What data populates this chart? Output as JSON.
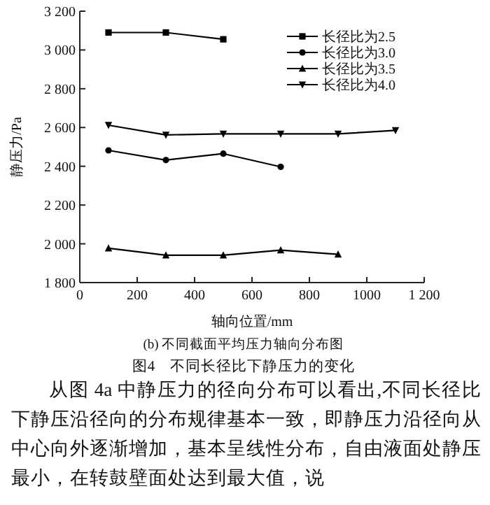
{
  "chart_data": {
    "type": "line",
    "title": "图4　不同长径比下静压力的变化",
    "subtitle": "(b) 不同截面平均压力轴向分布图",
    "xlabel": "轴向位置/mm",
    "ylabel": "静压力/Pa",
    "xlim": [
      0,
      1200
    ],
    "ylim": [
      1800,
      3200
    ],
    "xticks": [
      0,
      200,
      400,
      600,
      800,
      {
        "value": 1000,
        "label": "1000"
      },
      {
        "value": 1200,
        "label": "1 200"
      }
    ],
    "yticks": [
      {
        "value": 1800,
        "label": "1 800"
      },
      {
        "value": 2000,
        "label": "2 000"
      },
      {
        "value": 2200,
        "label": "2 200"
      },
      {
        "value": 2400,
        "label": "2 400"
      },
      {
        "value": 2600,
        "label": "2 600"
      },
      {
        "value": 2800,
        "label": "2 800"
      },
      {
        "value": 3000,
        "label": "3 000"
      },
      {
        "value": 3200,
        "label": "3 200"
      }
    ],
    "grid": false,
    "legend": "top right",
    "line_style": "solid",
    "series": [
      {
        "name": "长径比为2.5",
        "color": "#000000",
        "marker": "square",
        "x": [
          100,
          300,
          500
        ],
        "values": [
          3090,
          3090,
          3055
        ]
      },
      {
        "name": "长径比为3.0",
        "color": "#000000",
        "marker": "circle",
        "x": [
          100,
          300,
          500,
          700
        ],
        "values": [
          2482,
          2432,
          2465,
          2397
        ]
      },
      {
        "name": "长径比为3.5",
        "color": "#000000",
        "marker": "triangle",
        "x": [
          100,
          300,
          500,
          700,
          900
        ],
        "values": [
          1977,
          1941,
          1941,
          1967,
          1946
        ]
      },
      {
        "name": "长径比为4.0",
        "color": "#000000",
        "marker": "triangle-down",
        "x": [
          100,
          300,
          500,
          700,
          900,
          1100
        ],
        "values": [
          2612,
          2562,
          2567,
          2567,
          2567,
          2585
        ]
      }
    ],
    "annotations": [
      "从图 4a 中静压力的径向分布可以看出,不同长径比下静压沿径向的分布规律基本一致，即静压力沿径向从中心向外逐渐增加，基本呈线性分布，自由液面处静压最小，在转鼓壁面处达到最大值，说"
    ]
  }
}
